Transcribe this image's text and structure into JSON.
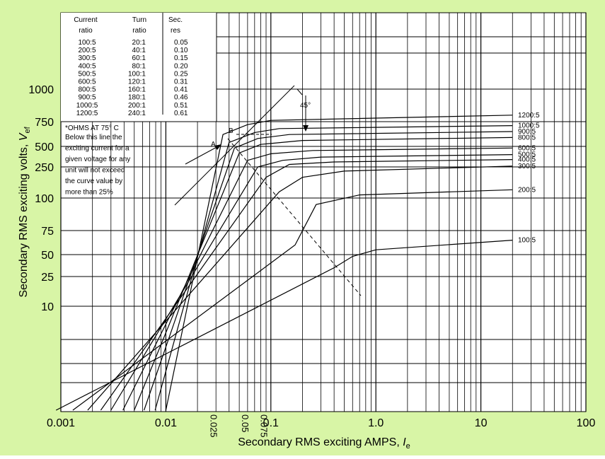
{
  "colors": {
    "background": "#d8f5a6",
    "plot_background": "#ffffff",
    "ink": "#000000"
  },
  "chart_data": {
    "type": "line",
    "title": "",
    "xlabel": "Secondary RMS exciting AMPS, ",
    "xlabel_sub": "I",
    "xlabel_subscript": "e",
    "ylabel": "Secondary RMS exciting volts, ",
    "ylabel_sub": "V",
    "ylabel_subscript": "ef",
    "x_scale": "log",
    "xlim": [
      0.001,
      100
    ],
    "x_ticks": [
      {
        "value": 0.001,
        "label": "0.001"
      },
      {
        "value": 0.01,
        "label": "0.01"
      },
      {
        "value": 0.1,
        "label": "0.1"
      },
      {
        "value": 1.0,
        "label": "1.0"
      },
      {
        "value": 10,
        "label": "10"
      },
      {
        "value": 100,
        "label": "100"
      }
    ],
    "x_rotated_ticks": [
      {
        "value": 0.025,
        "label": "0.025"
      },
      {
        "value": 0.05,
        "label": "0.05"
      },
      {
        "value": 0.075,
        "label": "0.075"
      }
    ],
    "y_ticks": [
      "1000",
      "750",
      "500",
      "250",
      "100",
      "75",
      "50",
      "25",
      "10"
    ],
    "grid": true,
    "series": [
      {
        "name": "100:5",
        "x": [
          0.0009,
          0.4,
          0.6,
          1.0,
          20
        ],
        "y": [
          1,
          35,
          48,
          55,
          65
        ]
      },
      {
        "name": "200:5",
        "x": [
          0.0013,
          0.17,
          0.27,
          0.7,
          20
        ],
        "y": [
          1,
          60,
          95,
          115,
          140
        ]
      },
      {
        "name": "300:5",
        "x": [
          0.0018,
          0.12,
          0.2,
          0.5,
          20
        ],
        "y": [
          1,
          130,
          200,
          230,
          260
        ]
      },
      {
        "name": "400:5",
        "x": [
          0.0024,
          0.09,
          0.15,
          0.4,
          20
        ],
        "y": [
          1,
          200,
          280,
          310,
          340
        ]
      },
      {
        "name": "500:5",
        "x": [
          0.003,
          0.075,
          0.13,
          0.3,
          20
        ],
        "y": [
          1,
          250,
          330,
          370,
          400
        ]
      },
      {
        "name": "600:5",
        "x": [
          0.0039,
          0.06,
          0.1,
          0.25,
          20
        ],
        "y": [
          1,
          330,
          410,
          450,
          480
        ]
      },
      {
        "name": "800:5",
        "x": [
          0.005,
          0.05,
          0.08,
          0.2,
          20
        ],
        "y": [
          1,
          420,
          520,
          560,
          590
        ]
      },
      {
        "name": "900:5",
        "x": [
          0.0062,
          0.045,
          0.075,
          0.15,
          20
        ],
        "y": [
          1,
          480,
          580,
          620,
          650
        ]
      },
      {
        "name": "1000:5",
        "x": [
          0.0079,
          0.04,
          0.07,
          0.12,
          20
        ],
        "y": [
          1,
          540,
          640,
          680,
          710
        ]
      },
      {
        "name": "1200:5",
        "x": [
          0.01,
          0.035,
          0.06,
          0.1,
          20
        ],
        "y": [
          1,
          620,
          720,
          760,
          800
        ]
      }
    ],
    "annotations": {
      "point_a": "A",
      "point_b": "B",
      "angle": "45°",
      "ohms_note": "*OHMS AT 75° C",
      "knee_note": [
        "Below this line the",
        "exciting current for a",
        "given voltage for any",
        "unit will not exceed",
        "the curve value by",
        "more than 25%"
      ]
    },
    "ratio_table": {
      "headers": [
        [
          "Current",
          "ratio"
        ],
        [
          "Turn",
          "ratio"
        ],
        [
          "Sec.",
          "res"
        ]
      ],
      "rows": [
        [
          "100:5",
          "20:1",
          "0.05"
        ],
        [
          "200:5",
          "40:1",
          "0.10"
        ],
        [
          "300:5",
          "60:1",
          "0.15"
        ],
        [
          "400:5",
          "80:1",
          "0.20"
        ],
        [
          "500:5",
          "100:1",
          "0.25"
        ],
        [
          "600:5",
          "120:1",
          "0.31"
        ],
        [
          "800:5",
          "160:1",
          "0.41"
        ],
        [
          "900:5",
          "180:1",
          "0.46"
        ],
        [
          "1000:5",
          "200:1",
          "0.51"
        ],
        [
          "1200:5",
          "240:1",
          "0.61"
        ]
      ]
    }
  }
}
